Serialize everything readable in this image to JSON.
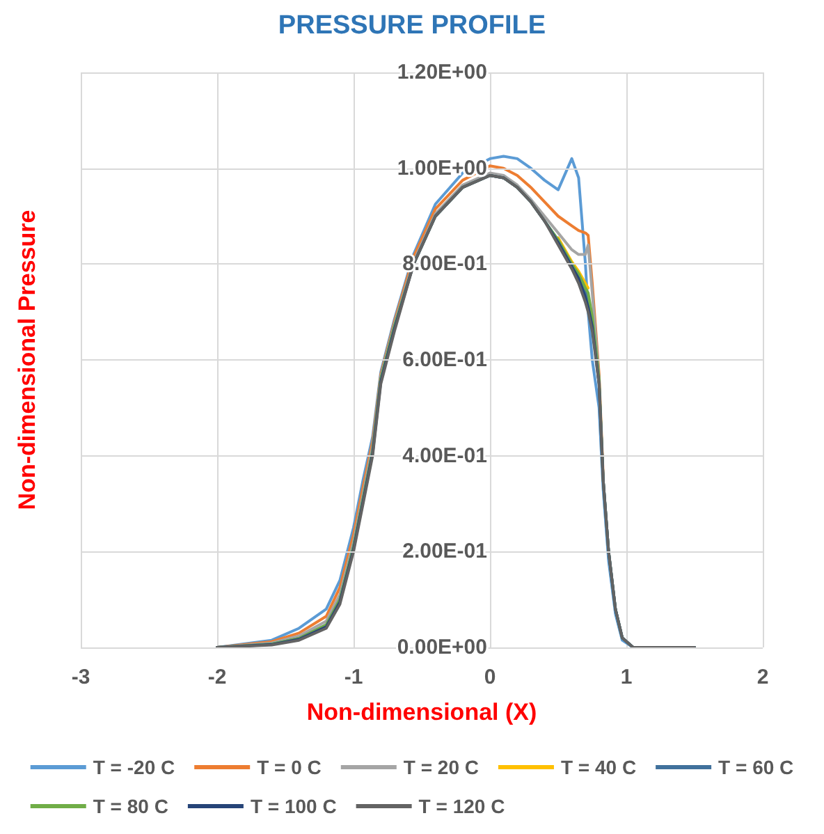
{
  "chart_data": {
    "type": "line",
    "title": "PRESSURE PROFILE",
    "xlabel": "Non-dimensional (X)",
    "ylabel": "Non-dimensional Pressure",
    "x": [
      -2,
      -1.6,
      -1.4,
      -1.2,
      -1.1,
      -1,
      -0.93,
      -0.86,
      -0.8,
      -0.7,
      -0.56,
      -0.4,
      -0.2,
      0,
      0.1,
      0.2,
      0.3,
      0.4,
      0.5,
      0.6,
      0.65,
      0.7,
      0.72,
      0.75,
      0.8,
      0.83,
      0.87,
      0.92,
      0.97,
      1.05,
      1.5
    ],
    "series": [
      {
        "name": "T = -20 C",
        "color": "#5b9bd5",
        "values": [
          0,
          0.015,
          0.04,
          0.08,
          0.14,
          0.25,
          0.35,
          0.44,
          0.575,
          0.685,
          0.82,
          0.925,
          0.99,
          1.02,
          1.025,
          1.02,
          1.0,
          0.975,
          0.955,
          1.02,
          0.98,
          0.8,
          0.7,
          0.6,
          0.5,
          0.33,
          0.18,
          0.07,
          0.015,
          0,
          0
        ]
      },
      {
        "name": "T = 0 C",
        "color": "#ed7d31",
        "values": [
          0,
          0.012,
          0.03,
          0.065,
          0.125,
          0.235,
          0.335,
          0.43,
          0.57,
          0.68,
          0.815,
          0.915,
          0.975,
          1.005,
          1.0,
          0.985,
          0.96,
          0.93,
          0.9,
          0.88,
          0.87,
          0.865,
          0.86,
          0.76,
          0.57,
          0.36,
          null,
          null,
          null,
          null,
          null
        ]
      },
      {
        "name": "T = 20 C",
        "color": "#a5a5a5",
        "values": [
          0,
          0.009,
          0.024,
          0.055,
          0.11,
          0.22,
          0.32,
          0.42,
          0.565,
          0.675,
          0.805,
          0.905,
          0.965,
          0.99,
          0.985,
          0.965,
          0.935,
          0.9,
          0.865,
          0.83,
          0.82,
          0.82,
          0.84,
          0.74,
          0.56,
          0.35,
          0.2,
          0.08,
          0.02,
          0,
          0
        ]
      },
      {
        "name": "T = 40 C",
        "color": "#ffc000",
        "values": [
          null,
          null,
          null,
          null,
          null,
          null,
          null,
          null,
          null,
          null,
          null,
          null,
          null,
          null,
          null,
          null,
          null,
          null,
          0.855,
          0.805,
          0.785,
          0.76,
          0.75,
          null,
          null,
          null,
          null,
          null,
          null,
          null,
          null
        ]
      },
      {
        "name": "T = 60 C",
        "color": "#41719c",
        "values": [
          0,
          0.007,
          0.019,
          0.047,
          0.1,
          0.21,
          0.31,
          0.41,
          0.56,
          0.67,
          0.8,
          0.9,
          0.96,
          0.985,
          0.98,
          0.96,
          0.93,
          0.89,
          0.85,
          0.8,
          0.775,
          0.74,
          0.72,
          0.68,
          0.55,
          0.35,
          0.2,
          0.08,
          0.02,
          0,
          0
        ]
      },
      {
        "name": "T = 80 C",
        "color": "#70ad47",
        "values": [
          0,
          0.007,
          0.019,
          0.047,
          0.1,
          0.21,
          0.31,
          0.41,
          0.56,
          0.67,
          0.8,
          0.9,
          0.96,
          0.985,
          0.98,
          0.96,
          0.93,
          0.89,
          0.85,
          0.8,
          0.78,
          0.75,
          0.74,
          0.69,
          0.56,
          0.35,
          0.2,
          0.08,
          0.02,
          0,
          0
        ]
      },
      {
        "name": "T = 100 C",
        "color": "#264478",
        "values": [
          0,
          0.006,
          0.017,
          0.043,
          0.095,
          0.205,
          0.305,
          0.405,
          0.555,
          0.665,
          0.8,
          0.9,
          0.96,
          0.985,
          0.98,
          0.96,
          0.93,
          0.89,
          0.845,
          0.795,
          0.77,
          0.73,
          0.71,
          0.67,
          0.55,
          0.35,
          0.2,
          0.08,
          0.02,
          0,
          0
        ]
      },
      {
        "name": "T = 120 C",
        "color": "#636363",
        "values": [
          0,
          0.005,
          0.015,
          0.04,
          0.09,
          0.2,
          0.3,
          0.4,
          0.55,
          0.66,
          0.8,
          0.9,
          0.96,
          0.985,
          0.98,
          0.96,
          0.93,
          0.89,
          0.84,
          0.79,
          0.76,
          0.72,
          0.7,
          0.66,
          0.55,
          0.35,
          0.2,
          0.08,
          0.02,
          0,
          0
        ]
      }
    ],
    "xlim": [
      -3,
      2
    ],
    "xticks": [
      -3,
      -2,
      -1,
      0,
      1,
      2
    ],
    "ylim": [
      0,
      1.2
    ],
    "yticks": [
      {
        "value": 0,
        "label": "0.00E+00"
      },
      {
        "value": 0.2,
        "label": "2.00E-01"
      },
      {
        "value": 0.4,
        "label": "4.00E-01"
      },
      {
        "value": 0.6,
        "label": "6.00E-01"
      },
      {
        "value": 0.8,
        "label": "8.00E-01"
      },
      {
        "value": 1,
        "label": "1.00E+00"
      },
      {
        "value": 1.2,
        "label": "1.20E+00"
      }
    ],
    "grid": true,
    "legend": "bottom",
    "marker": "none",
    "line_style": "solid"
  }
}
